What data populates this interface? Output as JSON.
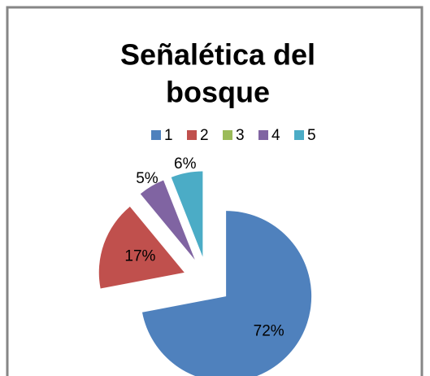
{
  "chart_data": {
    "type": "pie",
    "title": [
      "Señalética del",
      "bosque"
    ],
    "categories": [
      "1",
      "2",
      "3",
      "4",
      "5"
    ],
    "values": [
      72,
      17,
      0,
      5,
      6
    ],
    "value_labels": [
      "72%",
      "17%",
      null,
      "5%",
      "6%"
    ],
    "colors": [
      "#4f81bd",
      "#c0504d",
      "#9bbb59",
      "#8064a2",
      "#4bacc6"
    ],
    "legend": "top",
    "exploded": true
  }
}
